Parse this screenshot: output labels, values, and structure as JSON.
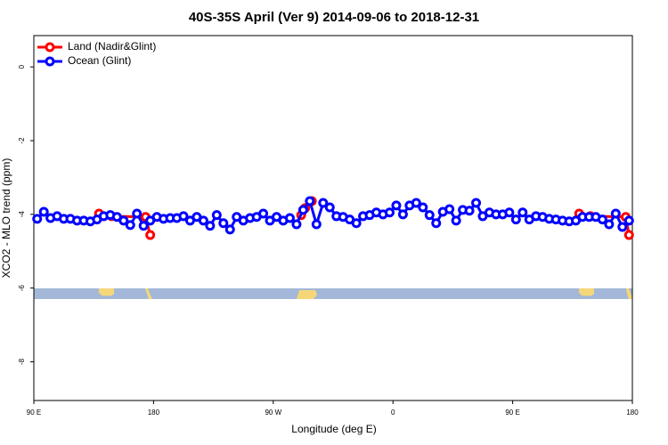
{
  "chart_data": {
    "type": "line",
    "title": "40S-35S April (Ver 9)   2014-09-06 to 2018-12-31",
    "x_label": "Longitude (deg E)",
    "y_label": "XCO2 - MLO trend (ppm)",
    "xlim": [
      90,
      540
    ],
    "xticks": [
      {
        "value": 90,
        "label": "90 E"
      },
      {
        "value": 180,
        "label": "180"
      },
      {
        "value": 270,
        "label": "90 W"
      },
      {
        "value": 360,
        "label": "0"
      },
      {
        "value": 450,
        "label": "90 E"
      },
      {
        "value": 540,
        "label": "180"
      }
    ],
    "ylim": [
      -9.05,
      0.85
    ],
    "yticks": [
      0,
      -2,
      -4,
      -6,
      -8
    ],
    "legend": "top-left",
    "series": [
      {
        "name": "Land (Nadir&Glint)",
        "color": "#ff0000",
        "x": [
          139,
          148.5,
          174,
          177.5,
          null,
          291,
          294,
          299,
          null,
          500,
          508.5,
          535,
          537.5
        ],
        "values": [
          -3.98,
          -4.05,
          -4.07,
          -4.56,
          null,
          -4.02,
          -3.83,
          -3.64,
          null,
          -3.98,
          -4.05,
          -4.07,
          -4.56
        ]
      },
      {
        "name": "Ocean (Glint)",
        "color": "#0000ff",
        "x": [
          92.5,
          97.5,
          102.5,
          107.5,
          112.5,
          117.5,
          122.5,
          127.5,
          132.5,
          137.5,
          142.5,
          147.5,
          152.5,
          157.5,
          162.5,
          167.5,
          172.5,
          177.5,
          182.5,
          187.5,
          192.5,
          197.5,
          202.5,
          207.5,
          212.5,
          217.5,
          222.5,
          227.5,
          232.5,
          237.5,
          242.5,
          247.5,
          252.5,
          257.5,
          262.5,
          267.5,
          272.5,
          277.5,
          282.5,
          287.5,
          292.5,
          297.5,
          302.5,
          307.5,
          312.5,
          317.5,
          322.5,
          327.5,
          332.5,
          337.5,
          342.5,
          347.5,
          352.5,
          357.5,
          362.5,
          367.5,
          372.5,
          377.5,
          382.5,
          387.5,
          392.5,
          397.5,
          402.5,
          407.5,
          412.5,
          417.5,
          422.5,
          427.5,
          432.5,
          437.5,
          442.5,
          447.5,
          452.5,
          457.5,
          462.5,
          467.5,
          472.5,
          477.5,
          482.5,
          487.5,
          492.5,
          497.5,
          502.5,
          507.5,
          512.5,
          517.5,
          522.5,
          527.5,
          532.5,
          537.5
        ],
        "values": [
          -4.12,
          -3.93,
          -4.1,
          -4.05,
          -4.12,
          -4.12,
          -4.17,
          -4.17,
          -4.19,
          -4.14,
          -4.05,
          -4.02,
          -4.07,
          -4.17,
          -4.29,
          -3.98,
          -4.31,
          -4.17,
          -4.07,
          -4.12,
          -4.1,
          -4.1,
          -4.05,
          -4.17,
          -4.07,
          -4.17,
          -4.31,
          -4.02,
          -4.24,
          -4.41,
          -4.07,
          -4.17,
          -4.1,
          -4.07,
          -3.98,
          -4.17,
          -4.07,
          -4.17,
          -4.1,
          -4.27,
          -3.88,
          -3.64,
          -4.27,
          -3.69,
          -3.81,
          -4.05,
          -4.07,
          -4.14,
          -4.24,
          -4.05,
          -4.02,
          -3.95,
          -4.0,
          -3.95,
          -3.76,
          -4.0,
          -3.76,
          -3.69,
          -3.81,
          -4.02,
          -4.24,
          -3.93,
          -3.86,
          -4.17,
          -3.88,
          -3.9,
          -3.69,
          -4.05,
          -3.95,
          -4.0,
          -4.0,
          -3.95,
          -4.14,
          -3.95,
          -4.14,
          -4.05,
          -4.07,
          -4.12,
          -4.14,
          -4.17,
          -4.19,
          -4.17,
          -4.07,
          -4.07,
          -4.07,
          -4.14,
          -4.27,
          -3.98,
          -4.34,
          -4.17
        ]
      }
    ]
  }
}
